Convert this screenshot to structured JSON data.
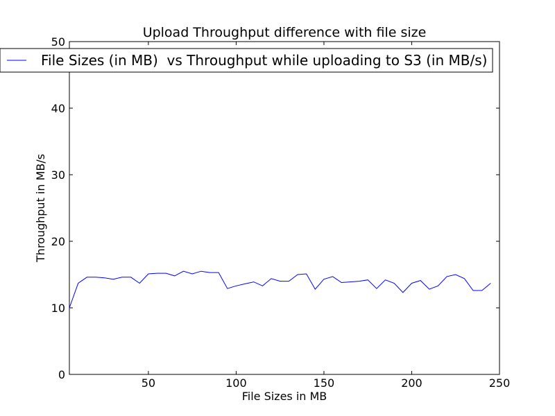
{
  "chart_data": {
    "type": "line",
    "title": "Upload Throughput difference with file size",
    "xlabel": "File Sizes in MB",
    "ylabel": "Throughput in MB/s",
    "xlim": [
      5,
      250
    ],
    "ylim": [
      0,
      50
    ],
    "xticks": [
      50,
      100,
      150,
      200,
      250
    ],
    "yticks": [
      0,
      10,
      20,
      30,
      40,
      50
    ],
    "grid": false,
    "legend_position": "top",
    "series": [
      {
        "name": "File Sizes (in MB)  vs Throughput while uploading to S3 (in MB/s)",
        "color": "#0000ff",
        "x": [
          5,
          10,
          15,
          20,
          25,
          30,
          35,
          40,
          45,
          50,
          55,
          60,
          65,
          70,
          75,
          80,
          85,
          90,
          95,
          100,
          105,
          110,
          115,
          120,
          125,
          130,
          135,
          140,
          145,
          150,
          155,
          160,
          165,
          170,
          175,
          180,
          185,
          190,
          195,
          200,
          205,
          210,
          215,
          220,
          225,
          230,
          235,
          240,
          245
        ],
        "y": [
          10.0,
          13.7,
          14.6,
          14.6,
          14.5,
          14.3,
          14.6,
          14.6,
          13.7,
          15.1,
          15.2,
          15.2,
          14.8,
          15.5,
          15.1,
          15.5,
          15.3,
          15.3,
          12.9,
          13.3,
          13.6,
          13.9,
          13.3,
          14.4,
          14.0,
          14.0,
          15.0,
          15.1,
          12.8,
          14.3,
          14.7,
          13.8,
          13.9,
          14.0,
          14.2,
          12.9,
          14.2,
          13.7,
          12.3,
          13.7,
          14.1,
          12.8,
          13.3,
          14.7,
          15.0,
          14.4,
          12.6,
          12.6,
          13.7
        ]
      }
    ]
  }
}
